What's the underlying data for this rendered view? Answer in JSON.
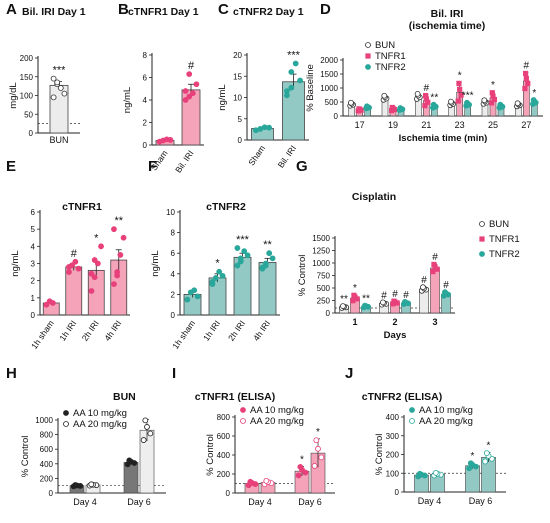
{
  "colors": {
    "bun": "#ececec",
    "tnfr1": "#f4a3b8",
    "tnfr1_dot": "#e8407a",
    "tnfr2": "#93c9c4",
    "tnfr2_dot": "#2aa79b",
    "dark": "#5a5a5a"
  },
  "chart_data": [
    {
      "panel": "A",
      "type": "bar",
      "title": "Bil. IRI Day 1",
      "ylabel": "mg/dL",
      "ylim": [
        0,
        200
      ],
      "yticks": [
        0,
        50,
        100,
        150,
        200
      ],
      "baseline": 25,
      "categories": [
        "BUN"
      ],
      "values": [
        127
      ],
      "errors": [
        10
      ],
      "points": [
        [
          145,
          130,
          120,
          105,
          95,
          135
        ]
      ],
      "sig": [
        "***"
      ]
    },
    {
      "panel": "B",
      "type": "bar",
      "title": "cTNFR1 Day 1",
      "ylabel": "ng/mL",
      "ylim": [
        0,
        8
      ],
      "yticks": [
        0,
        2,
        4,
        6,
        8
      ],
      "categories": [
        "Sham",
        "Bil. IRI"
      ],
      "values": [
        0.4,
        4.9
      ],
      "errors": [
        0.1,
        0.5
      ],
      "points": [
        [
          0.3,
          0.4,
          0.5,
          0.45
        ],
        [
          4.0,
          6.3,
          4.6,
          5.4,
          4.8,
          4.3
        ]
      ],
      "sig": [
        "",
        "#"
      ]
    },
    {
      "panel": "C",
      "type": "bar",
      "title": "cTNFR2 Day 1",
      "ylabel": "ng/mL",
      "ylim": [
        0,
        20
      ],
      "yticks": [
        0,
        5,
        10,
        15,
        20
      ],
      "categories": [
        "Sham",
        "Bil. IRI"
      ],
      "values": [
        2.7,
        13.7
      ],
      "errors": [
        0.3,
        1.8
      ],
      "points": [
        [
          2.3,
          2.6,
          3.0,
          2.9
        ],
        [
          10.5,
          16.0,
          18.0,
          14.0,
          11.5,
          12.3
        ]
      ],
      "sig": [
        "",
        "***"
      ]
    },
    {
      "panel": "D",
      "type": "bar",
      "title": "Bil. IRI",
      "subtitle": "(ischemia time)",
      "ylabel": "% Baseline",
      "xlabel": "Ischemia time (min)",
      "ylim": [
        0,
        2000
      ],
      "yticks": [
        0,
        500,
        1000,
        1500,
        2000
      ],
      "ytick_labels": [
        "0",
        "500",
        "1000",
        "1500",
        "2000"
      ],
      "categories": [
        "17",
        "19",
        "21",
        "23",
        "25",
        "27"
      ],
      "series": [
        {
          "name": "BUN",
          "values": [
            420,
            650,
            700,
            450,
            500,
            400
          ],
          "errors": [
            60,
            80,
            100,
            70,
            70,
            60
          ]
        },
        {
          "name": "TNFR1",
          "values": [
            220,
            250,
            550,
            850,
            650,
            1250
          ],
          "errors": [
            40,
            60,
            200,
            350,
            200,
            300
          ]
        },
        {
          "name": "TNFR2",
          "values": [
            310,
            250,
            350,
            420,
            350,
            500
          ],
          "errors": [
            40,
            40,
            60,
            60,
            60,
            80
          ]
        }
      ],
      "sig": [
        {
          "cat": 2,
          "s": 1,
          "t": "#"
        },
        {
          "cat": 2,
          "s": 2,
          "t": "**"
        },
        {
          "cat": 3,
          "s": 1,
          "t": "*"
        },
        {
          "cat": 3,
          "s": 2,
          "t": "***"
        },
        {
          "cat": 4,
          "s": 1,
          "t": "*"
        },
        {
          "cat": 5,
          "s": 1,
          "t": "#"
        },
        {
          "cat": 5,
          "s": 2,
          "t": "*"
        }
      ],
      "legend": [
        "BUN",
        "TNFR1",
        "TNFR2"
      ]
    },
    {
      "panel": "E",
      "type": "bar",
      "title": "cTNFR1",
      "ylabel": "ng/mL",
      "ylim": [
        0,
        6
      ],
      "yticks": [
        0,
        1,
        2,
        3,
        4,
        5,
        6
      ],
      "categories": [
        "1h sham",
        "1h IRI",
        "2h IRI",
        "4h IRI"
      ],
      "values": [
        0.7,
        2.8,
        2.6,
        3.2
      ],
      "errors": [
        0.1,
        0.2,
        0.5,
        0.6
      ],
      "points": [
        [
          0.6,
          0.8,
          0.7
        ],
        [
          2.5,
          2.9,
          3.1,
          2.7,
          2.8
        ],
        [
          1.4,
          2.2,
          3.0,
          4.0,
          2.4,
          3.2
        ],
        [
          1.8,
          2.5,
          3.5,
          4.5,
          5.0,
          2.3
        ]
      ],
      "sig": [
        "",
        "#",
        "*",
        "**"
      ]
    },
    {
      "panel": "F",
      "type": "bar",
      "title": "cTNFR2",
      "ylabel": "ng/mL",
      "ylim": [
        0,
        10
      ],
      "yticks": [
        0,
        2,
        4,
        6,
        8,
        10
      ],
      "categories": [
        "1h sham",
        "1h IRI",
        "2h IRI",
        "4h IRI"
      ],
      "values": [
        2.0,
        3.6,
        5.6,
        5.1
      ],
      "errors": [
        0.3,
        0.4,
        0.4,
        0.4
      ],
      "points": [
        [
          1.5,
          2.2,
          2.4,
          1.8
        ],
        [
          3.0,
          3.6,
          4.2,
          3.8,
          3.2
        ],
        [
          4.8,
          5.5,
          6.2,
          5.8,
          6.5,
          5.2
        ],
        [
          4.5,
          5.0,
          6.0,
          5.5,
          4.6,
          4.8
        ]
      ],
      "sig": [
        "",
        "*",
        "***",
        "**"
      ]
    },
    {
      "panel": "G",
      "type": "bar",
      "title": "Cisplatin",
      "ylabel": "% Control",
      "xlabel": "Days",
      "ylim": [
        0,
        1500
      ],
      "yticks": [
        0,
        250,
        500,
        750,
        1000,
        1250,
        1500
      ],
      "categories": [
        "1",
        "2",
        "3"
      ],
      "baseline": 100,
      "series": [
        {
          "name": "BUN",
          "values": [
            120,
            190,
            480
          ],
          "errors": [
            20,
            25,
            40
          ]
        },
        {
          "name": "TNFR1",
          "values": [
            300,
            210,
            900
          ],
          "errors": [
            60,
            30,
            80
          ]
        },
        {
          "name": "TNFR2",
          "values": [
            130,
            200,
            380
          ],
          "errors": [
            20,
            25,
            40
          ]
        }
      ],
      "sig": [
        {
          "cat": 0,
          "s": 0,
          "t": "**"
        },
        {
          "cat": 0,
          "s": 1,
          "t": "*"
        },
        {
          "cat": 0,
          "s": 2,
          "t": "**"
        },
        {
          "cat": 1,
          "s": 0,
          "t": "#"
        },
        {
          "cat": 1,
          "s": 1,
          "t": "#"
        },
        {
          "cat": 1,
          "s": 2,
          "t": "#"
        },
        {
          "cat": 2,
          "s": 0,
          "t": "#"
        },
        {
          "cat": 2,
          "s": 1,
          "t": "#"
        },
        {
          "cat": 2,
          "s": 2,
          "t": "#"
        }
      ],
      "legend": [
        "BUN",
        "TNFR1",
        "TNFR2"
      ]
    },
    {
      "panel": "H",
      "type": "bar",
      "title": "BUN",
      "ylabel": "% Control",
      "ylim": [
        0,
        1000
      ],
      "yticks": [
        0,
        200,
        400,
        600,
        800,
        1000
      ],
      "categories": [
        "Day 4",
        "Day 6"
      ],
      "baseline": 100,
      "series": [
        {
          "name": "AA 10 mg/kg",
          "values": [
            100,
            420
          ],
          "errors": [
            10,
            30
          ]
        },
        {
          "name": "AA 20 mg/kg",
          "values": [
            110,
            860
          ],
          "errors": [
            10,
            150
          ]
        }
      ],
      "legend": [
        "AA 10 mg/kg",
        "AA 20 mg/kg"
      ]
    },
    {
      "panel": "I",
      "type": "bar",
      "title": "cTNFR1 (ELISA)",
      "ylabel": "% Control",
      "ylim": [
        0,
        800
      ],
      "yticks": [
        0,
        200,
        400,
        600,
        800
      ],
      "categories": [
        "Day 4",
        "Day 6"
      ],
      "baseline": 100,
      "series": [
        {
          "name": "AA 10 mg/kg",
          "values": [
            100,
            230
          ],
          "errors": [
            20,
            50
          ]
        },
        {
          "name": "AA 20 mg/kg",
          "values": [
            110,
            420
          ],
          "errors": [
            20,
            150
          ]
        }
      ],
      "sig": [
        {
          "cat": 1,
          "s": 0,
          "t": "*"
        },
        {
          "cat": 1,
          "s": 1,
          "t": "*"
        }
      ],
      "legend": [
        "AA 10 mg/kg",
        "AA 20 mg/kg"
      ]
    },
    {
      "panel": "J",
      "type": "bar",
      "title": "cTNFR2 (ELISA)",
      "ylabel": "% Control",
      "ylim": [
        0,
        400
      ],
      "yticks": [
        0,
        100,
        200,
        300,
        400
      ],
      "categories": [
        "Day 4",
        "Day 6"
      ],
      "baseline": 100,
      "series": [
        {
          "name": "AA 10 mg/kg",
          "values": [
            90,
            140
          ],
          "errors": [
            8,
            15
          ]
        },
        {
          "name": "AA 20 mg/kg",
          "values": [
            95,
            185
          ],
          "errors": [
            8,
            25
          ]
        }
      ],
      "sig": [
        {
          "cat": 1,
          "s": 0,
          "t": "*"
        },
        {
          "cat": 1,
          "s": 1,
          "t": "*"
        }
      ],
      "legend": [
        "AA 10 mg/kg",
        "AA 20 mg/kg"
      ]
    }
  ]
}
